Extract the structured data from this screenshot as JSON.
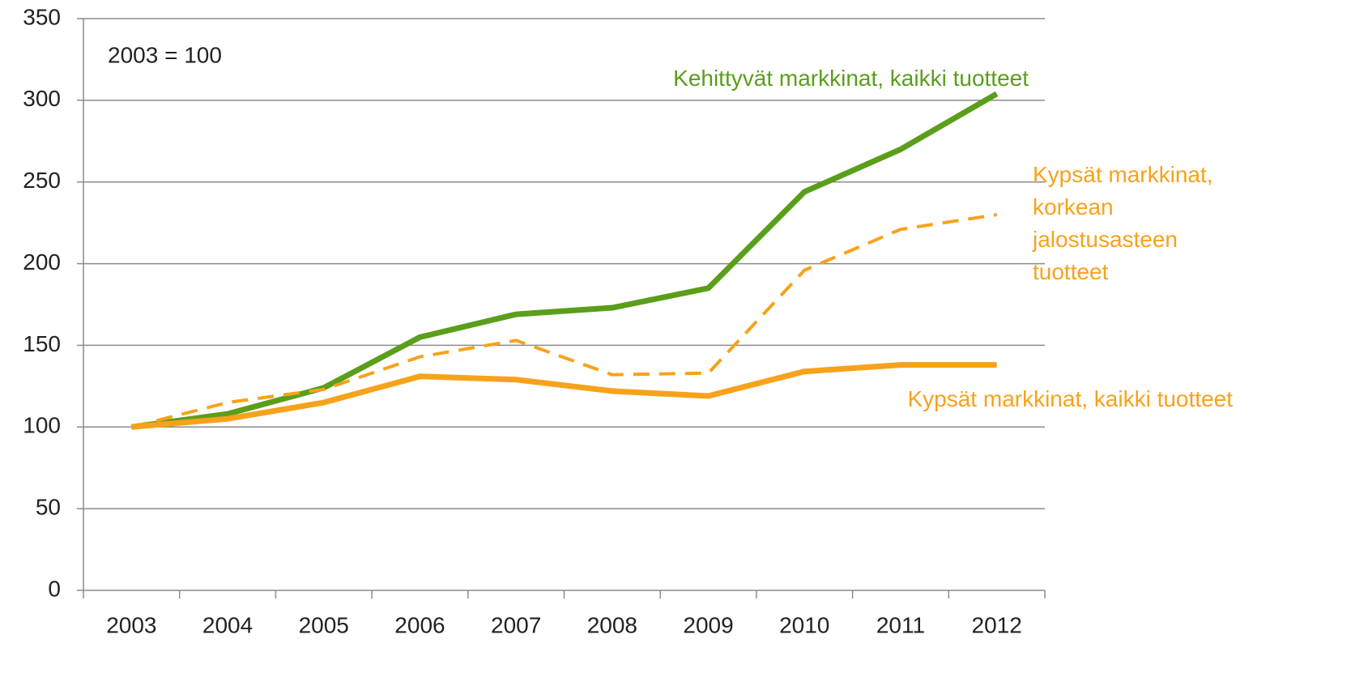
{
  "chart_data": {
    "type": "line",
    "annotation": "2003 = 100",
    "categories": [
      "2003",
      "2004",
      "2005",
      "2006",
      "2007",
      "2008",
      "2009",
      "2010",
      "2011",
      "2012"
    ],
    "series": [
      {
        "name": "Kehittyvät markkinat, kaikki tuotteet",
        "color": "#5a9e1a",
        "dashed": false,
        "values": [
          100,
          108,
          124,
          155,
          169,
          173,
          185,
          244,
          270,
          304
        ]
      },
      {
        "name": "Kypsät markkinat, korkean jalostusasteen tuotteet",
        "color": "#f7a21b",
        "dashed": true,
        "values": [
          100,
          115,
          123,
          143,
          153,
          132,
          133,
          196,
          221,
          230
        ]
      },
      {
        "name": "Kypsät markkinat, kaikki tuotteet",
        "color": "#f7a21b",
        "dashed": false,
        "values": [
          100,
          105,
          115,
          131,
          129,
          122,
          119,
          134,
          138,
          138
        ]
      }
    ],
    "ylim": [
      0,
      350
    ],
    "yticks": [
      0,
      50,
      100,
      150,
      200,
      250,
      300,
      350
    ],
    "grid": true
  }
}
